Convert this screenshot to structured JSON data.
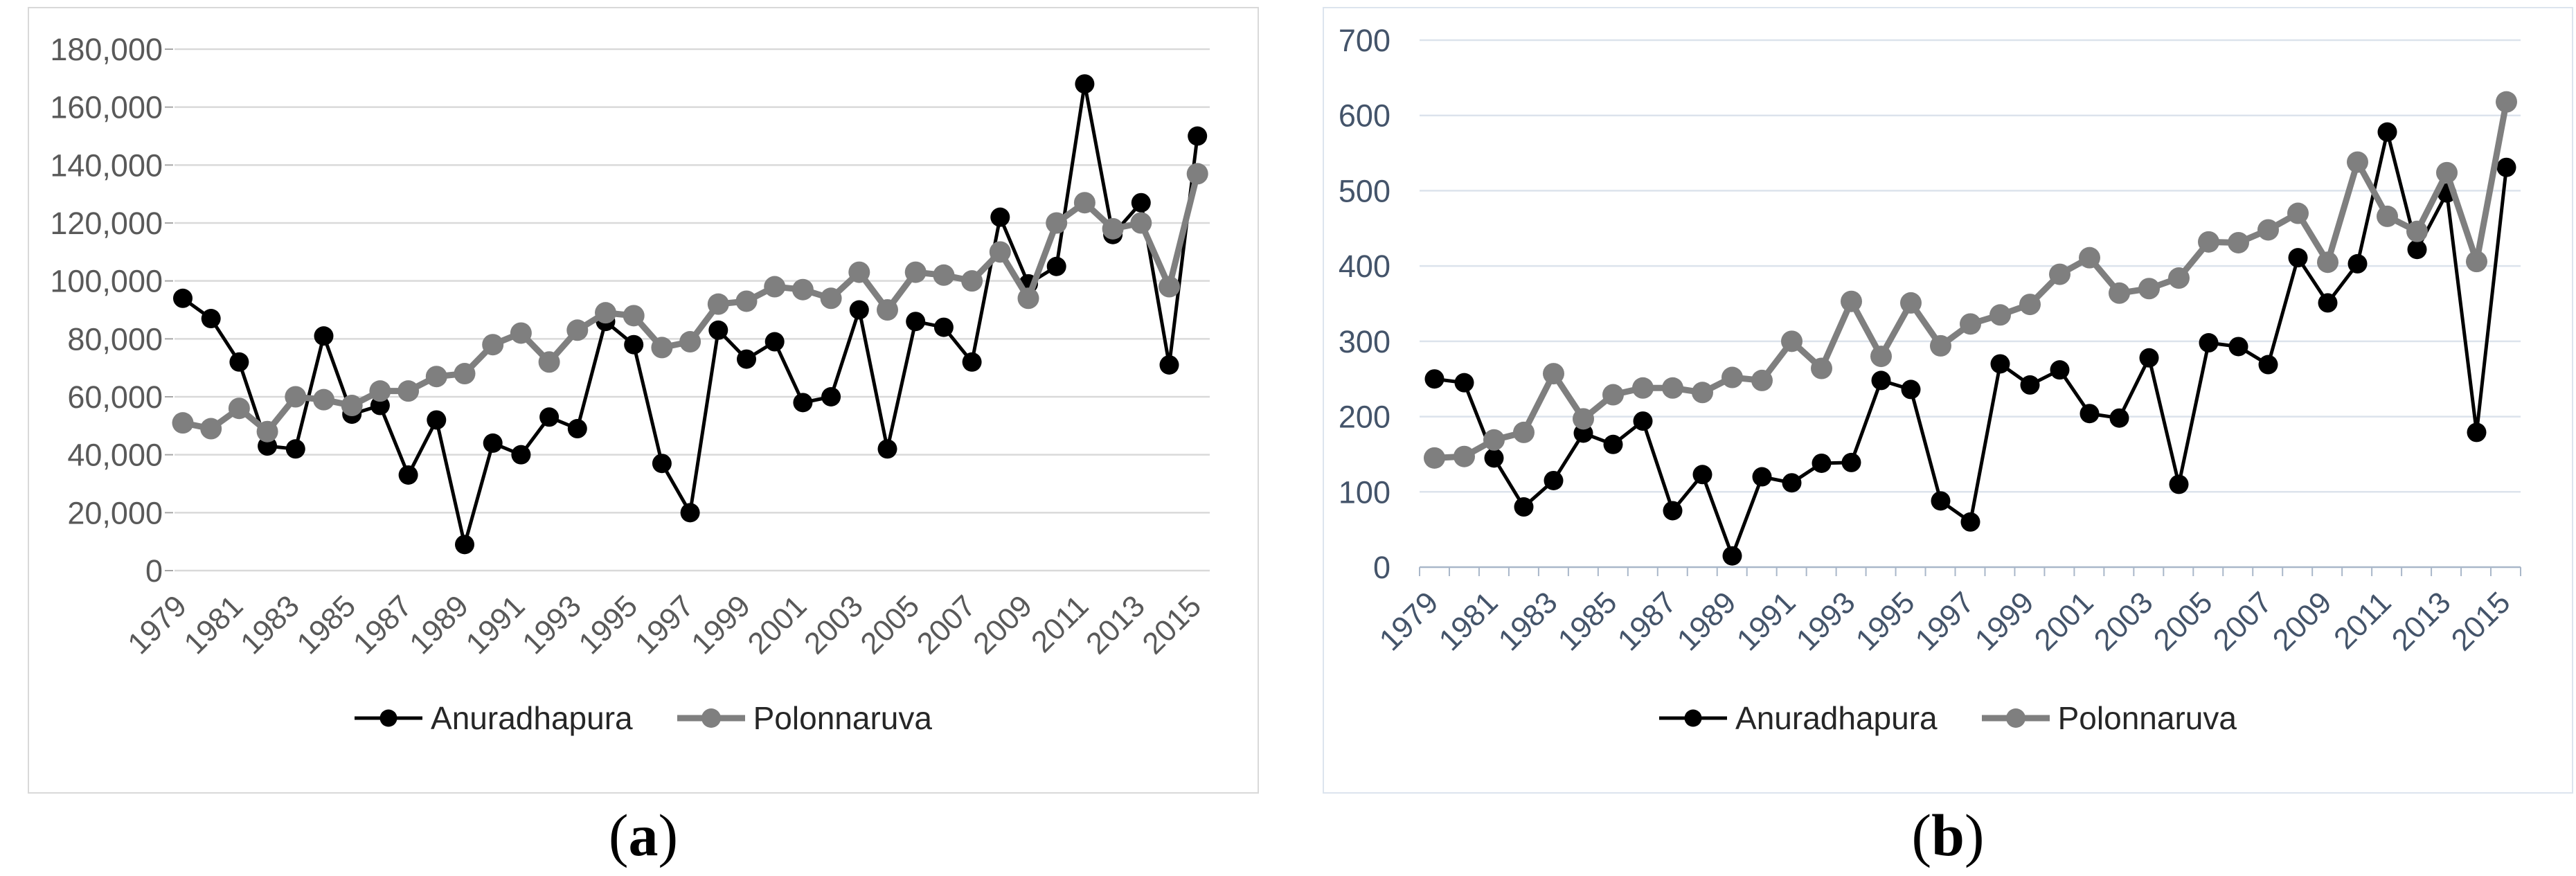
{
  "page": {
    "background": "#FFFFFF"
  },
  "captions": [
    {
      "open": "(",
      "letter": "a",
      "close": ")"
    },
    {
      "open": "(",
      "letter": "b",
      "close": ")"
    }
  ],
  "chart_data": [
    {
      "id": "a",
      "type": "line",
      "title": "",
      "xlabel": "",
      "ylabel": "",
      "grid": true,
      "legend_position": "bottom",
      "categories": [
        1979,
        1980,
        1981,
        1982,
        1983,
        1984,
        1985,
        1986,
        1987,
        1988,
        1989,
        1990,
        1991,
        1992,
        1993,
        1994,
        1995,
        1996,
        1997,
        1998,
        1999,
        2000,
        2001,
        2002,
        2003,
        2004,
        2005,
        2006,
        2007,
        2008,
        2009,
        2010,
        2011,
        2012,
        2013,
        2014,
        2015
      ],
      "x_tick_labels": [
        "1979",
        "1981",
        "1983",
        "1985",
        "1987",
        "1989",
        "1991",
        "1993",
        "1995",
        "1997",
        "1999",
        "2001",
        "2003",
        "2005",
        "2007",
        "2009",
        "2011",
        "2013",
        "2015"
      ],
      "x_label_interval": 2,
      "ylim": [
        0,
        180000
      ],
      "ystep": 20000,
      "y_tick_labels": [
        "0",
        "20,000",
        "40,000",
        "60,000",
        "80,000",
        "100,000",
        "120,000",
        "140,000",
        "160,000",
        "180,000"
      ],
      "colors": {
        "grid": "#D9D9D9",
        "border": "#D9D9D9",
        "tick_label": "#595959",
        "axis": "#A6A6A6",
        "legend_text": "#262626"
      },
      "series": [
        {
          "name": "Anuradhapura",
          "color": "#000000",
          "values": [
            94000,
            87000,
            72000,
            43000,
            42000,
            81000,
            54000,
            57000,
            33000,
            52000,
            9000,
            44000,
            40000,
            53000,
            49000,
            86000,
            78000,
            37000,
            20000,
            83000,
            73000,
            79000,
            58000,
            60000,
            90000,
            42000,
            86000,
            84000,
            72000,
            122000,
            99000,
            105000,
            168000,
            116000,
            127000,
            71000,
            150000
          ]
        },
        {
          "name": "Polonnaruva",
          "color": "#7F7F7F",
          "values": [
            51000,
            49000,
            56000,
            48000,
            60000,
            59000,
            57000,
            62000,
            62000,
            67000,
            68000,
            78000,
            82000,
            72000,
            83000,
            89000,
            88000,
            77000,
            79000,
            92000,
            93000,
            98000,
            97000,
            94000,
            103000,
            90000,
            103000,
            102000,
            100000,
            110000,
            94000,
            120000,
            127000,
            118000,
            120000,
            98000,
            137000
          ]
        }
      ]
    },
    {
      "id": "b",
      "type": "line",
      "title": "",
      "xlabel": "",
      "ylabel": "",
      "grid": true,
      "legend_position": "bottom",
      "categories": [
        1979,
        1980,
        1981,
        1982,
        1983,
        1984,
        1985,
        1986,
        1987,
        1988,
        1989,
        1990,
        1991,
        1992,
        1993,
        1994,
        1995,
        1996,
        1997,
        1998,
        1999,
        2000,
        2001,
        2002,
        2003,
        2004,
        2005,
        2006,
        2007,
        2008,
        2009,
        2010,
        2011,
        2012,
        2013,
        2014,
        2015
      ],
      "x_tick_labels": [
        "1979",
        "1981",
        "1983",
        "1985",
        "1987",
        "1989",
        "1991",
        "1993",
        "1995",
        "1997",
        "1999",
        "2001",
        "2003",
        "2005",
        "2007",
        "2009",
        "2011",
        "2013",
        "2015"
      ],
      "x_label_interval": 2,
      "ylim": [
        0,
        700
      ],
      "ystep": 100,
      "y_tick_labels": [
        "0",
        "100",
        "200",
        "300",
        "400",
        "500",
        "600",
        "700"
      ],
      "colors": {
        "grid": "#DCE3EC",
        "border": "#DCE4EE",
        "tick_label": "#44546A",
        "axis": "#A9B7C9",
        "legend_text": "#262626"
      },
      "series": [
        {
          "name": "Anuradhapura",
          "color": "#000000",
          "values": [
            250,
            245,
            145,
            80,
            115,
            178,
            163,
            194,
            75,
            123,
            15,
            120,
            112,
            138,
            139,
            248,
            236,
            88,
            60,
            270,
            242,
            262,
            204,
            198,
            278,
            110,
            298,
            293,
            269,
            411,
            351,
            403,
            578,
            422,
            497,
            179,
            531
          ]
        },
        {
          "name": "Polonnaruva",
          "color": "#7F7F7F",
          "values": [
            145,
            147,
            169,
            179,
            257,
            197,
            229,
            238,
            238,
            232,
            252,
            248,
            300,
            264,
            353,
            280,
            351,
            294,
            323,
            335,
            349,
            389,
            411,
            364,
            370,
            384,
            432,
            431,
            448,
            470,
            405,
            538,
            466,
            446,
            524,
            406,
            618
          ]
        }
      ]
    }
  ]
}
